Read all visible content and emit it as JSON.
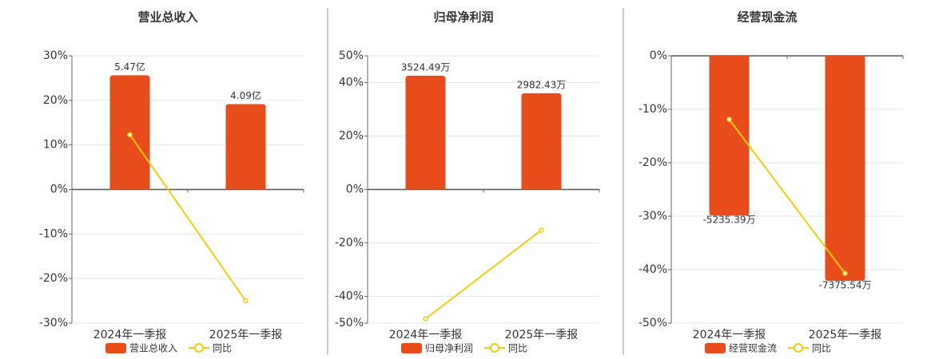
{
  "chart_data": [
    {
      "type": "combo",
      "title": "营业总收入",
      "categories": [
        "2024年一季报",
        "2025年一季报"
      ],
      "series": [
        {
          "name": "营业总收入",
          "type": "bar",
          "color": "#e84c1b",
          "axis": "y2",
          "values": [
            5.47,
            4.09
          ],
          "value_labels": [
            "5.47亿",
            "4.09亿"
          ]
        },
        {
          "name": "同比",
          "type": "line",
          "color": "#f5cc0c",
          "values": [
            12.3,
            -25.0
          ]
        }
      ],
      "ylim": [
        -30,
        30
      ],
      "yticks": [
        {
          "value": 30,
          "label": "30%"
        },
        {
          "value": 20,
          "label": "20%"
        },
        {
          "value": 10,
          "label": "10%"
        },
        {
          "value": 0,
          "label": "0%"
        },
        {
          "value": -10,
          "label": "-10%"
        },
        {
          "value": -20,
          "label": "-20%"
        },
        {
          "value": -30,
          "label": "-30%"
        }
      ],
      "y2lim": [
        -6.4,
        6.4
      ],
      "grid": true
    },
    {
      "type": "combo",
      "title": "归母净利润",
      "categories": [
        "2024年一季报",
        "2025年一季报"
      ],
      "series": [
        {
          "name": "归母净利润",
          "type": "bar",
          "color": "#e84c1b",
          "axis": "y2",
          "values": [
            3524.49,
            2982.43
          ],
          "value_labels": [
            "3524.49万",
            "2982.43万"
          ]
        },
        {
          "name": "同比",
          "type": "line",
          "color": "#f5cc0c",
          "values": [
            -48.4,
            -15.2
          ]
        }
      ],
      "ylim": [
        -50,
        50
      ],
      "yticks": [
        {
          "value": 50,
          "label": "50%"
        },
        {
          "value": 40,
          "label": "40%"
        },
        {
          "value": 20,
          "label": "20%"
        },
        {
          "value": 0,
          "label": "0%"
        },
        {
          "value": -20,
          "label": "-20%"
        },
        {
          "value": -40,
          "label": "-40%"
        },
        {
          "value": -50,
          "label": "-50%"
        }
      ],
      "y2lim": [
        -4140,
        4140
      ],
      "grid": true
    },
    {
      "type": "combo",
      "title": "经营现金流",
      "categories": [
        "2024年一季报",
        "2025年一季报"
      ],
      "series": [
        {
          "name": "经营现金流",
          "type": "bar",
          "color": "#e84c1b",
          "axis": "y2",
          "values": [
            -5235.39,
            -7375.54
          ],
          "value_labels": [
            "-5235.39万",
            "-7375.54万"
          ]
        },
        {
          "name": "同比",
          "type": "line",
          "color": "#f5cc0c",
          "values": [
            -11.9,
            -40.7
          ]
        }
      ],
      "ylim": [
        -50,
        0
      ],
      "yticks": [
        {
          "value": 0,
          "label": "0%"
        },
        {
          "value": -10,
          "label": "-10%"
        },
        {
          "value": -20,
          "label": "-20%"
        },
        {
          "value": -30,
          "label": "-30%"
        },
        {
          "value": -40,
          "label": "-40%"
        },
        {
          "value": -50,
          "label": "-50%"
        }
      ],
      "y2lim": [
        -8760,
        0
      ],
      "grid": true
    }
  ]
}
